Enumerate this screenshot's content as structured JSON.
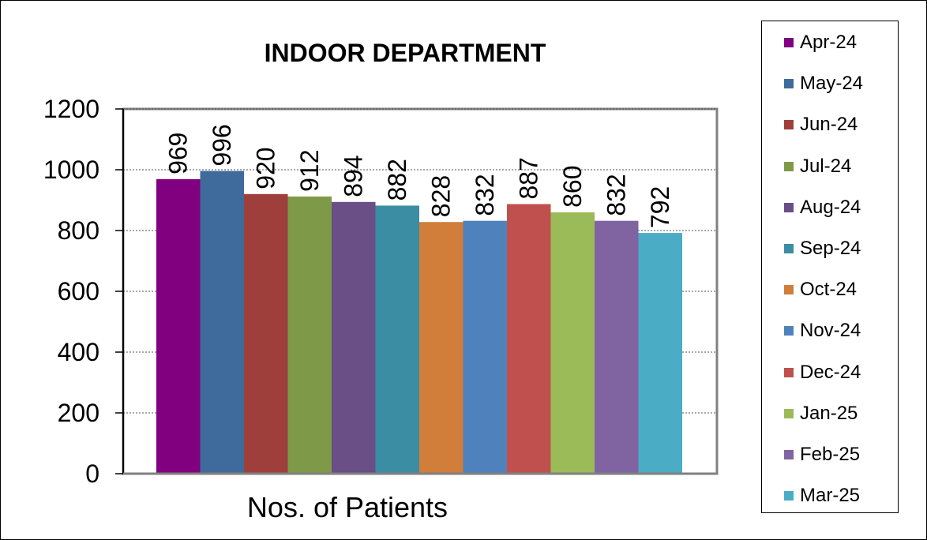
{
  "chart_data": {
    "type": "bar",
    "title": "INDOOR DEPARTMENT",
    "xlabel": "Nos. of Patients",
    "ylabel": "",
    "ylim": [
      0,
      1200
    ],
    "yticks": [
      0,
      200,
      400,
      600,
      800,
      1000,
      1200
    ],
    "grid": true,
    "legend_position": "right",
    "categories": [
      "Nos. of Patients"
    ],
    "series": [
      {
        "name": "Apr-24",
        "values": [
          969
        ],
        "color": "#800080"
      },
      {
        "name": "May-24",
        "values": [
          996
        ],
        "color": "#3F6A9C"
      },
      {
        "name": "Jun-24",
        "values": [
          920
        ],
        "color": "#9E3F3C"
      },
      {
        "name": "Jul-24",
        "values": [
          912
        ],
        "color": "#7E9A48"
      },
      {
        "name": "Aug-24",
        "values": [
          894
        ],
        "color": "#6A4E86"
      },
      {
        "name": "Sep-24",
        "values": [
          882
        ],
        "color": "#3A8DA3"
      },
      {
        "name": "Oct-24",
        "values": [
          828
        ],
        "color": "#D07E3A"
      },
      {
        "name": "Nov-24",
        "values": [
          832
        ],
        "color": "#4F81BD"
      },
      {
        "name": "Dec-24",
        "values": [
          887
        ],
        "color": "#C0504D"
      },
      {
        "name": "Jan-25",
        "values": [
          860
        ],
        "color": "#9BBB59"
      },
      {
        "name": "Feb-25",
        "values": [
          832
        ],
        "color": "#8064A2"
      },
      {
        "name": "Mar-25",
        "values": [
          792
        ],
        "color": "#4BACC6"
      }
    ]
  }
}
